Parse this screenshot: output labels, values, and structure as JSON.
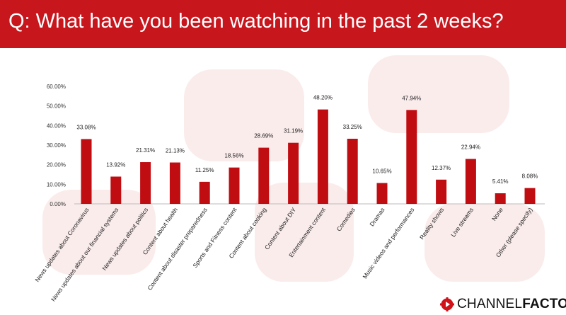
{
  "header": {
    "title": "Q: What have you been watching in the past 2 weeks?"
  },
  "logo": {
    "part1": "CHANNEL",
    "part2": "FACTORY"
  },
  "colors": {
    "header": "#c8161d",
    "bar": "#c00d12",
    "logo_mark": "#d0131b"
  },
  "chart_data": {
    "type": "bar",
    "categories": [
      "News updates about Coronavirus",
      "News updates about our financial systems",
      "News updates about politics",
      "Content about health",
      "Content about disaster preparedness",
      "Sports and Fitness content",
      "Content about cooking",
      "Content about DIY",
      "Entertainment content",
      "Comedies",
      "Dramas",
      "Music videos and performances",
      "Reality shows",
      "Live streams",
      "None",
      "Other (please specify)"
    ],
    "values": [
      33.08,
      13.92,
      21.31,
      21.13,
      11.25,
      18.56,
      28.69,
      31.19,
      48.2,
      33.25,
      10.65,
      47.94,
      12.37,
      22.94,
      5.41,
      8.08
    ],
    "value_labels": [
      "33.08%",
      "13.92%",
      "21.31%",
      "21.13%",
      "11.25%",
      "18.56%",
      "28.69%",
      "31.19%",
      "48.20%",
      "33.25%",
      "10.65%",
      "47.94%",
      "12.37%",
      "22.94%",
      "5.41%",
      "8.08%"
    ],
    "yticks": [
      "0.00%",
      "10.00%",
      "20.00%",
      "30.00%",
      "40.00%",
      "50.00%",
      "60.00%"
    ],
    "ylim": [
      0,
      60
    ],
    "grid": false
  }
}
